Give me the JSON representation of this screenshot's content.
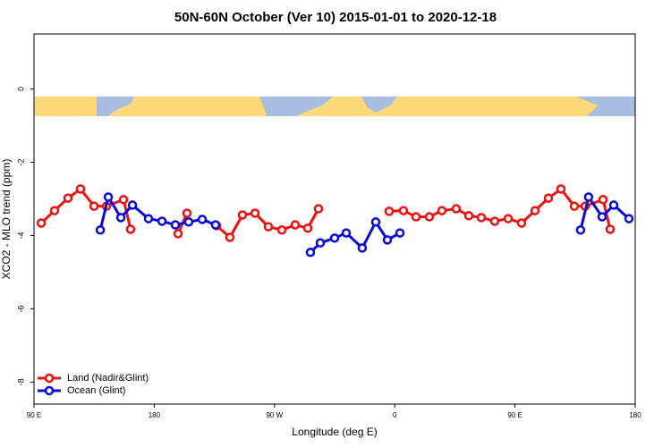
{
  "chart_data": {
    "type": "line",
    "title": "50N-60N October (Ver 10)   2015-01-01 to 2020-12-18",
    "x_label": "Longitude (deg E)",
    "y_label": "XCO2 - MLO trend (ppm)",
    "xlim": [
      90,
      540
    ],
    "xticks": [
      {
        "value": 90,
        "label": "90 E"
      },
      180,
      {
        "value": 270,
        "label": "90 W"
      },
      {
        "value": 360,
        "label": "0"
      },
      {
        "value": 450,
        "label": "90 E"
      },
      {
        "value": 540,
        "label": "180"
      }
    ],
    "ylim": [
      -8.6,
      1.5
    ],
    "yticks": [
      -8,
      -6,
      -4,
      -2,
      0
    ],
    "legend": "bottom-left",
    "series": [
      {
        "name": "Land (Nadir&Glint)",
        "color": "#ee1111",
        "x": [
          95.4,
          105.4,
          115.4,
          124.8,
          134.9,
          144.2,
          157.0,
          162.3,
          null,
          197.8,
          204.5,
          null,
          226.6,
          236.6,
          246.0,
          255.4,
          265.4,
          275.5,
          285.5,
          294.9,
          302.9,
          null,
          355.8,
          366.5,
          375.9,
          385.9,
          395.3,
          406.0,
          415.4,
          424.8,
          434.8,
          444.9,
          454.9,
          465.0,
          475.0,
          484.4,
          494.4,
          502.5,
          515.9,
          521.2
        ],
        "values": [
          -3.66,
          -3.32,
          -2.98,
          -2.73,
          -3.2,
          -3.2,
          -3.02,
          -3.83,
          null,
          -3.95,
          -3.39,
          null,
          -3.73,
          -4.05,
          -3.44,
          -3.39,
          -3.76,
          -3.85,
          -3.71,
          -3.8,
          -3.27,
          null,
          -3.34,
          -3.32,
          -3.49,
          -3.49,
          -3.32,
          -3.27,
          -3.46,
          -3.51,
          -3.61,
          -3.54,
          -3.66,
          -3.32,
          -2.98,
          -2.73,
          -3.2,
          -3.2,
          -3.02,
          -3.83
        ]
      },
      {
        "name": "Ocean (Glint)",
        "color": "#0a0ad8",
        "x": [
          139.6,
          145.6,
          155.0,
          163.7,
          175.7,
          185.8,
          195.8,
          205.8,
          215.9,
          225.9,
          null,
          296.9,
          304.3,
          315.0,
          323.7,
          335.7,
          345.8,
          354.5,
          363.9,
          null,
          499.1,
          505.1,
          515.2,
          523.9,
          535.3
        ],
        "values": [
          -3.85,
          -2.95,
          -3.51,
          -3.17,
          -3.54,
          -3.61,
          -3.71,
          -3.63,
          -3.56,
          -3.71,
          null,
          -4.46,
          -4.2,
          -4.07,
          -3.93,
          -4.34,
          -3.63,
          -4.12,
          -3.93,
          null,
          -3.85,
          -2.95,
          -3.49,
          -3.17,
          -3.54
        ]
      }
    ]
  }
}
